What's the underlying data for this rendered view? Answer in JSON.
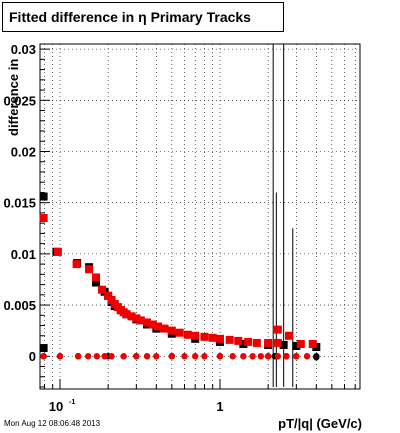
{
  "chart_data": {
    "type": "scatter",
    "title": "Fitted difference in η Primary Tracks",
    "xlabel": "pT/|q| (GeV/c)",
    "ylabel": "difference in",
    "x_scale": "log",
    "xlim": [
      0.075,
      7.5
    ],
    "ylim": [
      -0.0032,
      0.0305
    ],
    "grid": true,
    "x_ticks": [
      {
        "value": 0.1,
        "label": "10^-1"
      },
      {
        "value": 1,
        "label": "1"
      }
    ],
    "y_ticks": [
      {
        "value": 0,
        "label": "0"
      },
      {
        "value": 0.005,
        "label": "0.005"
      },
      {
        "value": 0.01,
        "label": "0.01"
      },
      {
        "value": 0.015,
        "label": "0.015"
      },
      {
        "value": 0.02,
        "label": "0.02"
      },
      {
        "value": 0.025,
        "label": "0.025"
      },
      {
        "value": 0.03,
        "label": "0.03"
      }
    ],
    "series": [
      {
        "color": "#000000",
        "marker": "square",
        "points": [
          [
            0.079,
            0.0156
          ],
          [
            0.079,
            0.0008
          ],
          [
            0.095,
            0.0102
          ],
          [
            0.128,
            0.0091
          ],
          [
            0.152,
            0.0087
          ],
          [
            0.168,
            0.0072
          ],
          [
            0.19,
            0.0063
          ],
          [
            0.2,
            0.0059
          ],
          [
            0.21,
            0.0053
          ],
          [
            0.22,
            0.0049
          ],
          [
            0.24,
            0.0045
          ],
          [
            0.26,
            0.0041
          ],
          [
            0.3,
            0.0036
          ],
          [
            0.35,
            0.0031
          ],
          [
            0.4,
            0.0027
          ],
          [
            0.5,
            0.0022
          ],
          [
            0.7,
            0.0017
          ],
          [
            1.0,
            0.0014
          ],
          [
            1.4,
            0.0012
          ],
          [
            2.0,
            0.0011
          ],
          [
            2.5,
            0.0011
          ],
          [
            3.0,
            0.001
          ],
          [
            4.0,
            0.0009
          ],
          [
            0.079,
            0.0
          ],
          [
            0.1,
            0.0
          ],
          [
            0.13,
            0.0
          ],
          [
            0.2,
            0.0
          ],
          [
            0.3,
            0.0
          ],
          [
            0.5,
            0.0
          ],
          [
            1.0,
            0.0
          ],
          [
            2.0,
            0.0
          ],
          [
            2.2,
            0.0
          ],
          [
            2.6,
            0.0
          ],
          [
            3.0,
            0.0
          ],
          [
            4.0,
            0.0
          ],
          [
            4.0,
            -0.0001
          ]
        ]
      },
      {
        "color": "#ee0000",
        "marker": "square",
        "points": [
          [
            0.079,
            0.0135
          ],
          [
            0.079,
            0.0
          ],
          [
            0.097,
            0.0102
          ],
          [
            0.127,
            0.009
          ],
          [
            0.152,
            0.0085
          ],
          [
            0.168,
            0.0077
          ],
          [
            0.183,
            0.0065
          ],
          [
            0.2,
            0.0059
          ],
          [
            0.21,
            0.0055
          ],
          [
            0.22,
            0.0051
          ],
          [
            0.23,
            0.0048
          ],
          [
            0.24,
            0.0045
          ],
          [
            0.25,
            0.0043
          ],
          [
            0.26,
            0.0041
          ],
          [
            0.28,
            0.0039
          ],
          [
            0.3,
            0.0037
          ],
          [
            0.32,
            0.0035
          ],
          [
            0.35,
            0.0033
          ],
          [
            0.38,
            0.0031
          ],
          [
            0.41,
            0.0029
          ],
          [
            0.45,
            0.0027
          ],
          [
            0.5,
            0.0025
          ],
          [
            0.56,
            0.0023
          ],
          [
            0.63,
            0.0021
          ],
          [
            0.7,
            0.002
          ],
          [
            0.8,
            0.0019
          ],
          [
            0.9,
            0.0018
          ],
          [
            1.0,
            0.0017
          ],
          [
            1.15,
            0.0016
          ],
          [
            1.3,
            0.0015
          ],
          [
            1.5,
            0.0014
          ],
          [
            1.7,
            0.0013
          ],
          [
            2.0,
            0.0013
          ],
          [
            2.3,
            0.0013
          ],
          [
            2.3,
            0.0026
          ],
          [
            2.7,
            0.002
          ],
          [
            3.2,
            0.0012
          ],
          [
            3.8,
            0.0012
          ],
          [
            0.1,
            0.0
          ],
          [
            0.13,
            0.0
          ],
          [
            0.15,
            0.0
          ],
          [
            0.17,
            0.0
          ],
          [
            0.19,
            0.0
          ],
          [
            0.21,
            0.0
          ],
          [
            0.25,
            0.0
          ],
          [
            0.3,
            0.0
          ],
          [
            0.35,
            0.0
          ],
          [
            0.4,
            0.0
          ],
          [
            0.5,
            0.0
          ],
          [
            0.6,
            0.0
          ],
          [
            0.7,
            0.0
          ],
          [
            0.8,
            0.0
          ],
          [
            1.0,
            0.0
          ],
          [
            1.2,
            0.0
          ],
          [
            1.4,
            0.0
          ],
          [
            1.6,
            0.0
          ],
          [
            1.8,
            0.0
          ],
          [
            2.0,
            0.0
          ],
          [
            2.3,
            0.0
          ],
          [
            2.6,
            0.0
          ],
          [
            3.0,
            0.0
          ],
          [
            3.5,
            0.0
          ]
        ]
      }
    ],
    "error_bars": [
      {
        "x": 2.15,
        "y": 0.001,
        "ylow": -0.003,
        "yhigh": 0.0305
      },
      {
        "x": 2.25,
        "y": 0.001,
        "ylow": -0.003,
        "yhigh": 0.016
      },
      {
        "x": 2.5,
        "y": 0.0,
        "ylow": -0.003,
        "yhigh": 0.0305
      },
      {
        "x": 2.85,
        "y": 0.001,
        "ylow": -0.003,
        "yhigh": 0.0125
      }
    ]
  },
  "footer": {
    "timestamp": "Mon Aug 12 08:06:48 2013"
  }
}
